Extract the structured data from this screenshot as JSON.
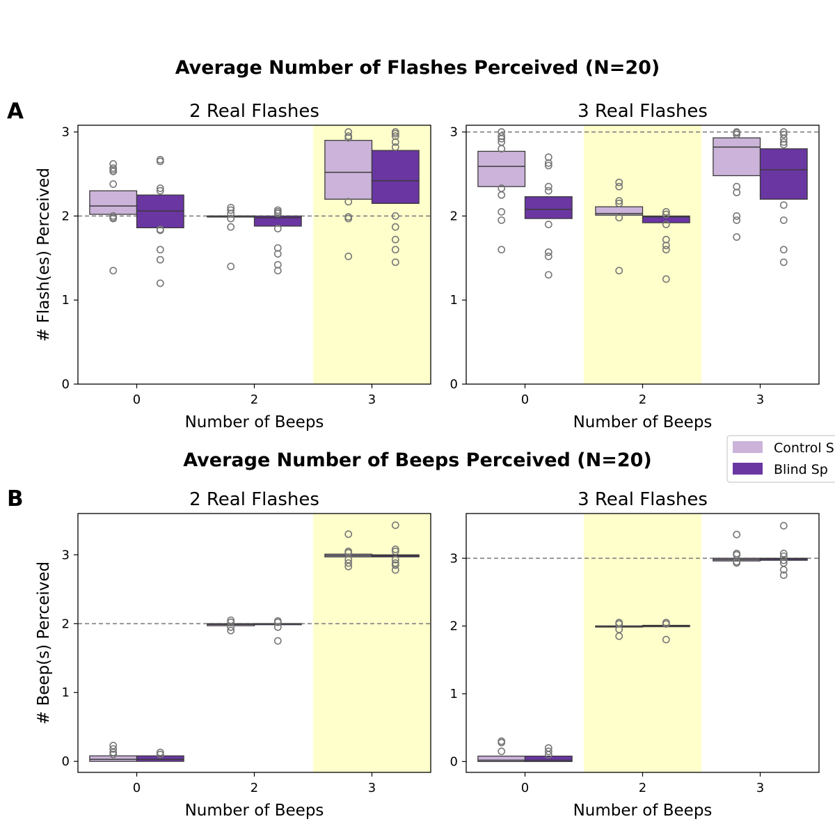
{
  "figure": {
    "title_top": "Average Number of Flashes Perceived (N=20)",
    "title_bottom": "Average Number of Beeps Perceived (N=20)",
    "panel_a": "A",
    "panel_b": "B"
  },
  "legend": {
    "control": {
      "label": "Control S",
      "color": "#cbb3d9"
    },
    "blind": {
      "label": "Blind Sp",
      "color": "#6a36a2"
    }
  },
  "chart_data": [
    {
      "type": "box",
      "title": "2 Real Flashes",
      "xlabel": "Number of Beeps",
      "ylabel": "# Flash(es) Perceived",
      "categories": [
        "0",
        "2",
        "3"
      ],
      "ylim": [
        0,
        3.08
      ],
      "yticks": [
        "0",
        "1",
        "2",
        "3"
      ],
      "reference_line": 2,
      "highlight_category": "3",
      "series": [
        {
          "name": "Control S",
          "boxes": [
            {
              "q1": 2.02,
              "median": 2.12,
              "q3": 2.3,
              "outliers": [
                1.35,
                1.97,
                1.98,
                2.0,
                2.38,
                2.53,
                2.55,
                2.57,
                2.62
              ]
            },
            {
              "q1": 2.0,
              "median": 2.0,
              "q3": 2.0,
              "outliers": [
                1.4,
                1.87,
                1.97,
                2.03,
                2.07,
                2.1
              ]
            },
            {
              "q1": 2.2,
              "median": 2.52,
              "q3": 2.9,
              "outliers": [
                1.52,
                1.97,
                1.99,
                2.17,
                2.93,
                2.95,
                3.0
              ]
            }
          ]
        },
        {
          "name": "Blind Sp",
          "boxes": [
            {
              "q1": 1.86,
              "median": 2.06,
              "q3": 2.25,
              "outliers": [
                1.2,
                1.48,
                1.6,
                1.83,
                1.84,
                2.3,
                2.33,
                2.65,
                2.67
              ]
            },
            {
              "q1": 1.88,
              "median": 1.98,
              "q3": 2.0,
              "outliers": [
                1.35,
                1.42,
                1.55,
                1.62,
                1.85,
                2.03,
                2.05,
                2.07
              ]
            },
            {
              "q1": 2.15,
              "median": 2.42,
              "q3": 2.78,
              "outliers": [
                1.45,
                1.6,
                1.72,
                1.87,
                2.0,
                2.82,
                2.88,
                2.95,
                2.98,
                3.0
              ]
            }
          ]
        }
      ]
    },
    {
      "type": "box",
      "title": "3 Real Flashes",
      "xlabel": "Number of Beeps",
      "ylabel": "",
      "categories": [
        "0",
        "2",
        "3"
      ],
      "ylim": [
        0,
        3.08
      ],
      "yticks": [
        "0",
        "1",
        "2",
        "3"
      ],
      "reference_line": 3,
      "highlight_category": "2",
      "series": [
        {
          "name": "Control S",
          "boxes": [
            {
              "q1": 2.35,
              "median": 2.59,
              "q3": 2.77,
              "outliers": [
                1.6,
                1.95,
                2.05,
                2.25,
                2.33,
                2.8,
                2.88,
                2.92,
                2.95,
                3.0
              ]
            },
            {
              "q1": 2.01,
              "median": 2.03,
              "q3": 2.11,
              "outliers": [
                1.35,
                1.98,
                2.15,
                2.18,
                2.35,
                2.4
              ]
            },
            {
              "q1": 2.48,
              "median": 2.82,
              "q3": 2.93,
              "outliers": [
                1.75,
                1.95,
                2.0,
                2.28,
                2.35,
                2.97,
                2.99,
                3.0
              ]
            }
          ]
        },
        {
          "name": "Blind Sp",
          "boxes": [
            {
              "q1": 1.97,
              "median": 2.08,
              "q3": 2.23,
              "outliers": [
                1.3,
                1.52,
                1.57,
                1.9,
                2.3,
                2.35,
                2.6,
                2.63,
                2.7
              ]
            },
            {
              "q1": 1.92,
              "median": 1.99,
              "q3": 2.0,
              "outliers": [
                1.25,
                1.6,
                1.65,
                1.72,
                1.9,
                2.02,
                2.05
              ]
            },
            {
              "q1": 2.2,
              "median": 2.55,
              "q3": 2.8,
              "outliers": [
                1.45,
                1.6,
                1.95,
                2.13,
                2.85,
                2.88,
                2.92,
                2.97,
                3.0
              ]
            }
          ]
        }
      ]
    },
    {
      "type": "box",
      "title": "2 Real Flashes",
      "xlabel": "Number of Beeps",
      "ylabel": "# Beep(s) Perceived",
      "categories": [
        "0",
        "2",
        "3"
      ],
      "ylim": [
        -0.16,
        3.6
      ],
      "yticks": [
        "0",
        "1",
        "2",
        "3"
      ],
      "reference_line": 2,
      "highlight_category": "3",
      "series": [
        {
          "name": "Control S",
          "boxes": [
            {
              "q1": 0.0,
              "median": 0.03,
              "q3": 0.08,
              "outliers": [
                0.1,
                0.13,
                0.18,
                0.23
              ]
            },
            {
              "q1": 1.97,
              "median": 1.99,
              "q3": 2.0,
              "outliers": [
                1.9,
                1.95,
                2.02,
                2.05
              ]
            },
            {
              "q1": 2.97,
              "median": 2.99,
              "q3": 3.01,
              "outliers": [
                2.83,
                2.88,
                2.93,
                3.03,
                3.05,
                3.3
              ]
            }
          ]
        },
        {
          "name": "Blind Sp",
          "boxes": [
            {
              "q1": 0.0,
              "median": 0.03,
              "q3": 0.08,
              "outliers": [
                0.1,
                0.13
              ]
            },
            {
              "q1": 2.0,
              "median": 2.0,
              "q3": 2.0,
              "outliers": [
                1.75,
                1.95,
                2.02,
                2.04
              ]
            },
            {
              "q1": 2.97,
              "median": 2.99,
              "q3": 3.0,
              "outliers": [
                2.78,
                2.85,
                2.88,
                2.93,
                3.05,
                3.08,
                3.43
              ]
            }
          ]
        }
      ]
    },
    {
      "type": "box",
      "title": "3 Real Flashes",
      "xlabel": "Number of Beeps",
      "ylabel": "",
      "categories": [
        "0",
        "2",
        "3"
      ],
      "ylim": [
        -0.16,
        3.66
      ],
      "yticks": [
        "0",
        "1",
        "2",
        "3"
      ],
      "reference_line": 3,
      "highlight_category": "2",
      "series": [
        {
          "name": "Control S",
          "boxes": [
            {
              "q1": 0.0,
              "median": 0.02,
              "q3": 0.08,
              "outliers": [
                0.15,
                0.28,
                0.3
              ]
            },
            {
              "q1": 2.0,
              "median": 2.0,
              "q3": 2.0,
              "outliers": [
                1.85,
                1.95,
                2.03,
                2.05
              ]
            },
            {
              "q1": 2.96,
              "median": 2.98,
              "q3": 3.0,
              "outliers": [
                2.93,
                2.95,
                3.05,
                3.07,
                3.35
              ]
            }
          ]
        },
        {
          "name": "Blind Sp",
          "boxes": [
            {
              "q1": 0.0,
              "median": 0.02,
              "q3": 0.08,
              "outliers": [
                0.1,
                0.15,
                0.2
              ]
            },
            {
              "q1": 1.99,
              "median": 2.0,
              "q3": 2.01,
              "outliers": [
                1.8,
                2.03,
                2.05
              ]
            },
            {
              "q1": 2.97,
              "median": 2.99,
              "q3": 3.0,
              "outliers": [
                2.75,
                2.83,
                2.93,
                2.97,
                3.03,
                3.07,
                3.48
              ]
            }
          ]
        }
      ]
    }
  ]
}
